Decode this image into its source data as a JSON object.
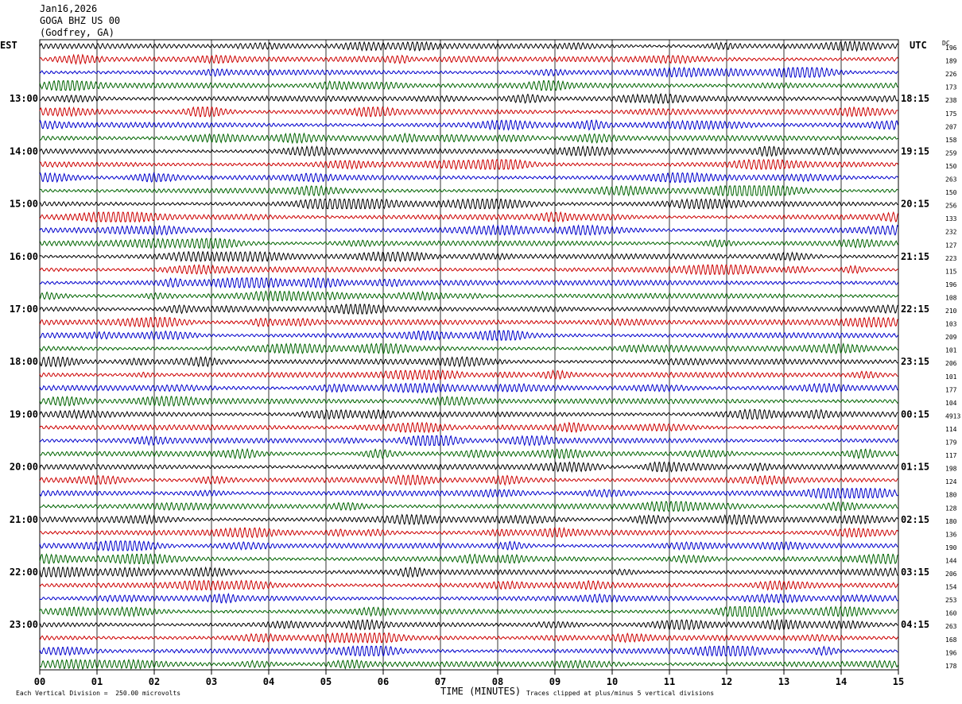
{
  "header": {
    "date": "Jan16,2026",
    "station": "GOGA BHZ US 00",
    "location": "(Godfrey, GA)"
  },
  "left_label": "EST",
  "right_label": "UTC",
  "dc_label": "DC",
  "footer": {
    "scale_note": "Each Vertical Division =  250.00 microvolts",
    "xlabel": "TIME (MINUTES)",
    "clip_note": "Traces clipped at plus/minus 5 vertical divisions"
  },
  "colors": {
    "trace_cycle": [
      "#000000",
      "#cc0000",
      "#0000cc",
      "#006400"
    ],
    "grid": "#000000"
  },
  "chart_data": {
    "type": "line",
    "title": "",
    "xlabel": "TIME (MINUTES)",
    "ylabel": "",
    "x_range": [
      0,
      15
    ],
    "x_ticks": [
      "00",
      "01",
      "02",
      "03",
      "04",
      "05",
      "06",
      "07",
      "08",
      "09",
      "10",
      "11",
      "12",
      "13",
      "14",
      "15"
    ],
    "rows_per_hour": 4,
    "row_count": 48,
    "est_hour_labels": [
      "13:00",
      "14:00",
      "15:00",
      "16:00",
      "17:00",
      "18:00",
      "19:00",
      "20:00",
      "21:00",
      "22:00",
      "23:00"
    ],
    "utc_hour_labels": [
      "18:15",
      "19:15",
      "20:15",
      "21:15",
      "22:15",
      "23:15",
      "00:15",
      "01:15",
      "02:15",
      "03:15",
      "04:15"
    ],
    "dc_offsets": [
      "196",
      "189",
      "226",
      "173",
      "238",
      "175",
      "207",
      "158",
      "259",
      "150",
      "263",
      "150",
      "256",
      "133",
      "232",
      "127",
      "223",
      "115",
      "196",
      "108",
      "210",
      "103",
      "209",
      "101",
      "206",
      "101",
      "177",
      "104",
      "4913",
      "114",
      "179",
      "117",
      "198",
      "124",
      "180",
      "128",
      "180",
      "136",
      "190",
      "144",
      "206",
      "154",
      "253",
      "160",
      "263",
      "168",
      "196",
      "178"
    ]
  }
}
